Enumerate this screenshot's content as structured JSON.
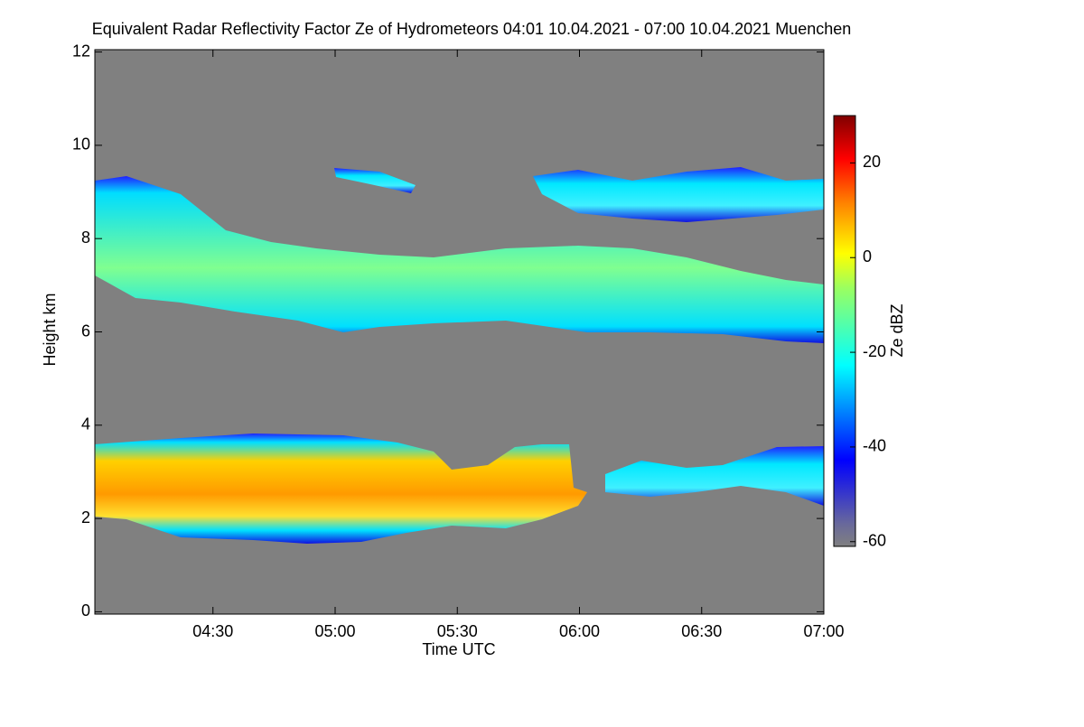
{
  "chart_data": {
    "type": "heatmap",
    "title": "Equivalent Radar Reflectivity Factor Ze of Hydrometeors   04:01 10.04.2021 - 07:00 10.04.2021 Muenchen",
    "xlabel": "Time UTC",
    "ylabel": "Height km",
    "colorbar_label": "Ze dBZ",
    "xlim": [
      241,
      420
    ],
    "xticks": [
      {
        "value": 270,
        "label": "04:30"
      },
      {
        "value": 300,
        "label": "05:00"
      },
      {
        "value": 330,
        "label": "05:30"
      },
      {
        "value": 360,
        "label": "06:00"
      },
      {
        "value": 390,
        "label": "06:30"
      },
      {
        "value": 420,
        "label": "07:00"
      }
    ],
    "ylim": [
      -0.05,
      12.05
    ],
    "yticks": [
      0,
      2,
      4,
      6,
      8,
      10,
      12
    ],
    "clim": [
      -61,
      30
    ],
    "cticks": [
      -60,
      -40,
      -20,
      0,
      20
    ],
    "background": "#808080"
  }
}
